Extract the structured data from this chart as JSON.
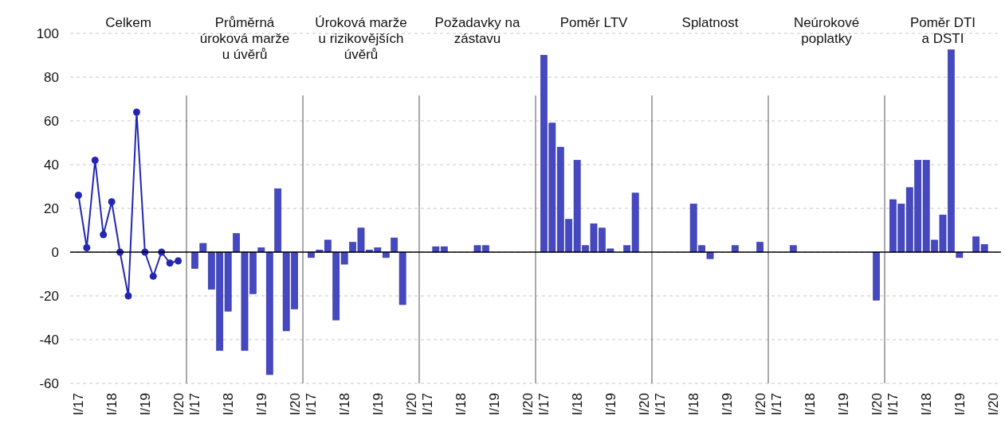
{
  "chart_data": [
    {
      "type": "line",
      "title": "Celkem",
      "categories": [
        "I/17",
        null,
        null,
        null,
        "I/18",
        null,
        null,
        null,
        "I/19",
        null,
        null,
        null,
        "I/20"
      ],
      "values": [
        26,
        2,
        42,
        8,
        23,
        0,
        -20,
        64,
        0,
        -11,
        0,
        -5,
        -4
      ],
      "color": "#2327b0",
      "marker": "circle",
      "ylim": [
        -60,
        100
      ],
      "yticks": [
        -60,
        -40,
        -20,
        0,
        20,
        40,
        60,
        80,
        100
      ],
      "grid": "y"
    },
    {
      "type": "bar",
      "title": "Průměrná\núroková marže\nu úvěrů",
      "categories": [
        "I/17",
        null,
        null,
        null,
        "I/18",
        null,
        null,
        null,
        "I/19",
        null,
        null,
        null,
        "I/20"
      ],
      "values": [
        -7.5,
        4,
        -17,
        -45,
        -27,
        8.5,
        -45,
        -19,
        2,
        -56,
        29,
        -36,
        -26
      ],
      "color": "#4548bf",
      "ylim": [
        -60,
        100
      ],
      "grid": "y",
      "tick_labels": "x"
    },
    {
      "type": "bar",
      "title": "Úroková marže\nu rizikovějších\núvěrů",
      "categories": [
        "I/17",
        null,
        null,
        null,
        "I/18",
        null,
        null,
        null,
        "I/19",
        null,
        null,
        null,
        "I/20"
      ],
      "values": [
        -2.5,
        1,
        5.5,
        -31,
        -5.5,
        4.5,
        11,
        1,
        2,
        -2.5,
        6.5,
        -24,
        0
      ],
      "color": "#4548bf",
      "ylim": [
        -60,
        100
      ],
      "grid": "y",
      "tick_labels": "x"
    },
    {
      "type": "bar",
      "title": "Požadavky na\nzástavu",
      "categories": [
        "I/17",
        null,
        null,
        null,
        "I/18",
        null,
        null,
        null,
        "I/19",
        null,
        null,
        null,
        "I/20"
      ],
      "values": [
        0,
        2.5,
        2.5,
        0,
        0,
        0,
        3,
        3,
        0,
        0,
        0,
        0,
        0
      ],
      "color": "#4548bf",
      "ylim": [
        -60,
        100
      ],
      "grid": "y",
      "tick_labels": "x"
    },
    {
      "type": "bar",
      "title": "Poměr LTV",
      "categories": [
        "I/17",
        null,
        null,
        null,
        "I/18",
        null,
        null,
        null,
        "I/19",
        null,
        null,
        null,
        "I/20"
      ],
      "values": [
        90,
        59,
        48,
        15,
        42,
        3,
        13,
        11,
        1.5,
        0,
        3,
        27,
        0
      ],
      "color": "#4548bf",
      "ylim": [
        -60,
        100
      ],
      "grid": "y",
      "tick_labels": "x"
    },
    {
      "type": "bar",
      "title": "Splatnost",
      "categories": [
        "I/17",
        null,
        null,
        null,
        "I/18",
        null,
        null,
        null,
        "I/19",
        null,
        null,
        null,
        "I/20"
      ],
      "values": [
        0,
        0,
        0,
        0,
        22,
        3,
        -3,
        0,
        0,
        3,
        0,
        0,
        4.5
      ],
      "color": "#4548bf",
      "ylim": [
        -60,
        100
      ],
      "grid": "y",
      "tick_labels": "x"
    },
    {
      "type": "bar",
      "title": "Neúrokové\npoplatky",
      "categories": [
        "I/17",
        null,
        null,
        null,
        "I/18",
        null,
        null,
        null,
        "I/19",
        null,
        null,
        null,
        "I/20"
      ],
      "values": [
        0,
        0,
        3,
        0,
        0,
        0,
        0,
        0,
        0,
        0,
        0,
        0,
        -22
      ],
      "color": "#4548bf",
      "ylim": [
        -60,
        100
      ],
      "grid": "y",
      "tick_labels": "x"
    },
    {
      "type": "bar",
      "title": "Poměr DTI\na DSTI",
      "categories": [
        "I/17",
        null,
        null,
        null,
        "I/18",
        null,
        null,
        null,
        "I/19",
        null,
        null,
        null,
        "I/20"
      ],
      "values": [
        24,
        22,
        29.5,
        42,
        42,
        5.5,
        17,
        92.5,
        -2.5,
        0,
        7,
        3.5,
        0
      ],
      "color": "#4548bf",
      "ylim": [
        -60,
        100
      ],
      "grid": "y",
      "tick_labels": "x"
    }
  ]
}
